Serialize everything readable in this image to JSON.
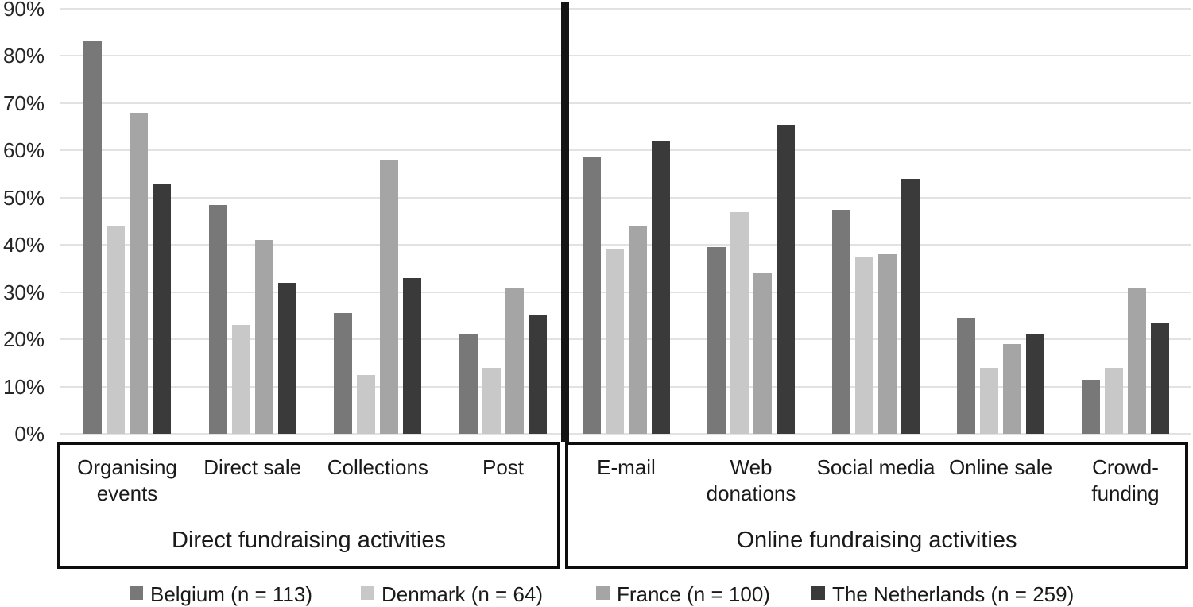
{
  "chart_data": {
    "type": "bar",
    "unit": "%",
    "y_axis": {
      "min": 0,
      "max": 90,
      "tick_step": 10,
      "tick_labels": [
        "0%",
        "10%",
        "20%",
        "30%",
        "40%",
        "50%",
        "60%",
        "70%",
        "80%",
        "90%"
      ],
      "grid": true
    },
    "sections": [
      {
        "title": "Direct fundraising activities",
        "categories": [
          {
            "label": "Organising events",
            "lines": [
              "Organising",
              "events"
            ]
          },
          {
            "label": "Direct sale",
            "lines": [
              "Direct sale"
            ]
          },
          {
            "label": "Collections",
            "lines": [
              "Collections"
            ]
          },
          {
            "label": "Post",
            "lines": [
              "Post"
            ]
          }
        ]
      },
      {
        "title": "Online fundraising activities",
        "categories": [
          {
            "label": "E-mail",
            "lines": [
              "E-mail"
            ]
          },
          {
            "label": "Web donations",
            "lines": [
              "Web",
              "donations"
            ]
          },
          {
            "label": "Social media",
            "lines": [
              "Social media"
            ]
          },
          {
            "label": "Online sale",
            "lines": [
              "Online sale"
            ]
          },
          {
            "label": "Crowd-funding",
            "lines": [
              "Crowd-",
              "funding"
            ]
          }
        ]
      }
    ],
    "series": [
      {
        "key": "belgium",
        "name": "Belgium (n = 113)",
        "color": "#787878",
        "values_by_section": [
          [
            83.3,
            48.5,
            25.5,
            21.0
          ],
          [
            58.5,
            39.5,
            47.5,
            24.5,
            11.5
          ]
        ]
      },
      {
        "key": "denmark",
        "name": "Denmark (n = 64)",
        "color": "#c8c8c8",
        "values_by_section": [
          [
            44.0,
            23.0,
            12.5,
            14.0
          ],
          [
            39.0,
            47.0,
            37.5,
            14.0,
            14.0
          ]
        ]
      },
      {
        "key": "france",
        "name": "France (n = 100)",
        "color": "#a5a5a5",
        "values_by_section": [
          [
            68.0,
            41.0,
            58.0,
            31.0
          ],
          [
            44.0,
            34.0,
            38.0,
            19.0,
            31.0
          ]
        ]
      },
      {
        "key": "netherlands",
        "name": "The Netherlands (n = 259)",
        "color": "#3a3a3a",
        "values_by_section": [
          [
            52.8,
            32.0,
            33.0,
            25.0
          ],
          [
            62.0,
            65.5,
            54.0,
            21.0,
            23.5
          ]
        ]
      }
    ],
    "legend_position": "bottom",
    "colors": {
      "gridline": "#e2e2e2",
      "divider": "#141414",
      "box_border": "#0d0d0d",
      "text": "#1a1a1a",
      "background": "#ffffff"
    }
  }
}
